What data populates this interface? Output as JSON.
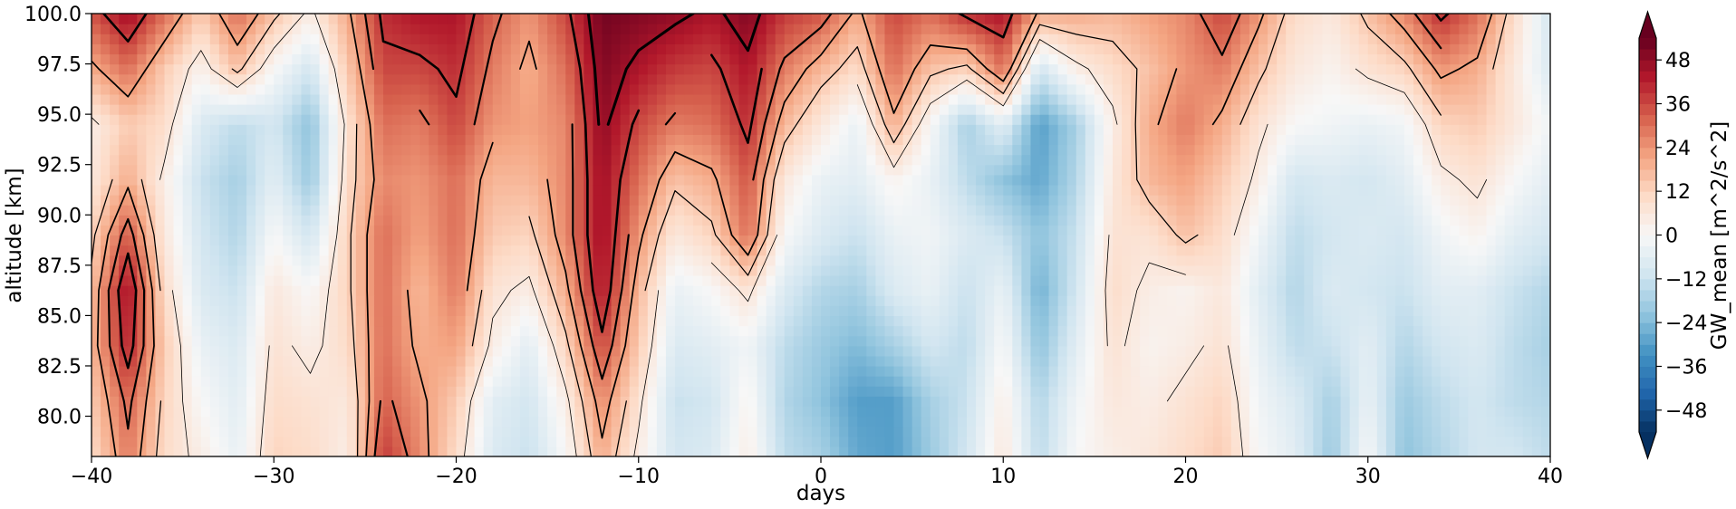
{
  "chart_data": {
    "type": "heatmap",
    "title": "",
    "xlabel": "days",
    "ylabel": "altitude [km]",
    "xlim": [
      -40,
      40
    ],
    "ylim": [
      78,
      100
    ],
    "x_ticks": [
      -40,
      -30,
      -20,
      -10,
      0,
      10,
      20,
      30,
      40
    ],
    "x_tick_labels": [
      "−40",
      "−30",
      "−20",
      "−10",
      "0",
      "10",
      "20",
      "30",
      "40"
    ],
    "y_ticks": [
      80,
      82.5,
      85,
      87.5,
      90,
      92.5,
      95,
      97.5,
      100
    ],
    "y_tick_labels": [
      "80.0",
      "82.5",
      "85.0",
      "87.5",
      "90.0",
      "92.5",
      "95.0",
      "97.5",
      "100.0"
    ],
    "grid": false,
    "colormap": "RdBu_r",
    "colorbar": {
      "label": "GW_mean [m^2/s^2]",
      "range": [
        -54,
        54
      ],
      "extend": "both",
      "ticks": [
        -48,
        -36,
        -24,
        -12,
        0,
        12,
        24,
        36,
        48
      ],
      "tick_labels": [
        "−48",
        "−36",
        "−24",
        "−12",
        "0",
        "12",
        "24",
        "36",
        "48"
      ]
    },
    "x": [
      -40,
      -38,
      -36,
      -34,
      -32,
      -30,
      -28,
      -26,
      -24,
      -22,
      -20,
      -18,
      -16,
      -14,
      -12,
      -10,
      -8,
      -6,
      -4,
      -2,
      0,
      2,
      4,
      6,
      8,
      10,
      12,
      14,
      16,
      18,
      20,
      22,
      24,
      26,
      28,
      30,
      32,
      34,
      36,
      38,
      40
    ],
    "y": [
      78,
      80.75,
      83.5,
      86.25,
      89,
      91.75,
      94.5,
      97.25,
      100
    ],
    "z": [
      [
        10,
        28,
        10,
        4,
        -4,
        12,
        10,
        4,
        38,
        26,
        10,
        -8,
        -12,
        0,
        20,
        4,
        -10,
        -8,
        4,
        -14,
        -18,
        -28,
        -30,
        -20,
        -10,
        6,
        -14,
        0,
        4,
        6,
        10,
        14,
        0,
        -6,
        -20,
        0,
        -22,
        -16,
        -10,
        -10,
        -14
      ],
      [
        14,
        32,
        12,
        0,
        -6,
        10,
        8,
        6,
        32,
        24,
        14,
        -6,
        -10,
        4,
        26,
        8,
        -12,
        -10,
        2,
        -16,
        -22,
        -30,
        -30,
        -18,
        -12,
        4,
        -16,
        -2,
        6,
        4,
        8,
        12,
        -2,
        -8,
        -18,
        -4,
        -20,
        -14,
        -10,
        -14,
        -16
      ],
      [
        18,
        42,
        14,
        -4,
        -8,
        8,
        4,
        10,
        30,
        20,
        22,
        4,
        -6,
        12,
        36,
        14,
        -8,
        -6,
        -2,
        -14,
        -20,
        -24,
        -18,
        -10,
        -14,
        0,
        -22,
        -6,
        8,
        2,
        4,
        8,
        -4,
        -14,
        -12,
        -6,
        -16,
        -10,
        -8,
        -14,
        -18
      ],
      [
        16,
        46,
        10,
        -8,
        -12,
        6,
        0,
        12,
        30,
        18,
        28,
        8,
        4,
        20,
        44,
        18,
        -4,
        0,
        8,
        -8,
        -16,
        -18,
        -8,
        -4,
        -12,
        -4,
        -26,
        -10,
        10,
        4,
        2,
        6,
        -6,
        -16,
        -8,
        -10,
        -12,
        -6,
        -6,
        -12,
        -16
      ],
      [
        12,
        34,
        6,
        -10,
        -16,
        0,
        -10,
        12,
        30,
        22,
        30,
        14,
        12,
        26,
        46,
        24,
        6,
        12,
        30,
        0,
        -8,
        -12,
        -4,
        -2,
        -8,
        -12,
        -22,
        -12,
        8,
        8,
        16,
        10,
        -2,
        -14,
        -10,
        -8,
        -10,
        -2,
        2,
        -6,
        -10
      ],
      [
        6,
        20,
        4,
        -12,
        -18,
        -6,
        -20,
        10,
        26,
        24,
        30,
        18,
        18,
        26,
        46,
        30,
        16,
        20,
        34,
        6,
        -4,
        -6,
        2,
        -4,
        -14,
        -22,
        -28,
        -16,
        6,
        18,
        22,
        14,
        4,
        -10,
        -8,
        -10,
        -6,
        4,
        8,
        0,
        -6
      ],
      [
        4,
        14,
        10,
        -8,
        -14,
        -10,
        -22,
        8,
        30,
        28,
        36,
        24,
        22,
        26,
        48,
        36,
        28,
        30,
        40,
        18,
        6,
        -4,
        20,
        0,
        -18,
        -6,
        -30,
        -18,
        4,
        20,
        28,
        20,
        8,
        0,
        -2,
        -4,
        -2,
        12,
        14,
        6,
        -2
      ],
      [
        20,
        30,
        14,
        2,
        16,
        0,
        -10,
        14,
        36,
        36,
        40,
        28,
        20,
        30,
        50,
        44,
        38,
        36,
        44,
        28,
        18,
        10,
        30,
        16,
        12,
        30,
        -10,
        4,
        10,
        16,
        24,
        28,
        16,
        6,
        2,
        8,
        12,
        24,
        20,
        6,
        -8
      ],
      [
        34,
        46,
        30,
        14,
        30,
        16,
        4,
        20,
        40,
        44,
        44,
        32,
        24,
        36,
        52,
        50,
        48,
        44,
        50,
        38,
        34,
        20,
        36,
        30,
        40,
        44,
        20,
        20,
        18,
        22,
        26,
        36,
        24,
        10,
        6,
        16,
        26,
        40,
        30,
        10,
        -10
      ]
    ],
    "line_contours": {
      "color": "#000000",
      "levels": [
        6,
        14,
        22,
        30,
        38,
        46
      ]
    }
  }
}
